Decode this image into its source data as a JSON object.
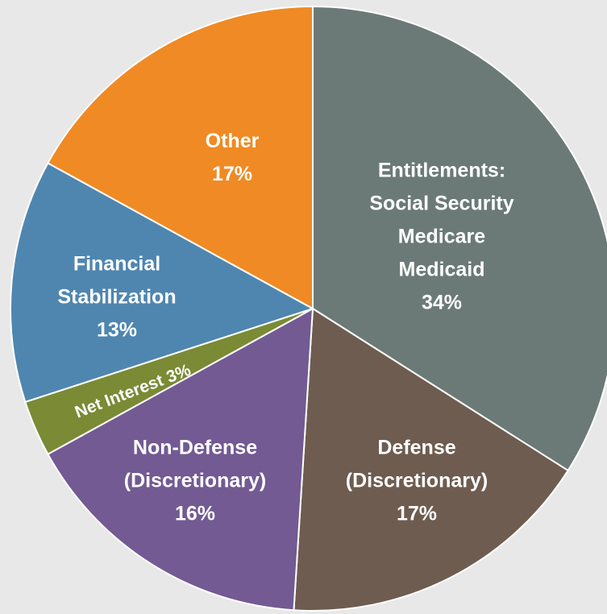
{
  "chart_data": {
    "type": "pie",
    "categories": [
      [
        "Entitlements:",
        "Social Security",
        "Medicare",
        "Medicaid"
      ],
      [
        "Defense",
        "(Discretionary)"
      ],
      [
        "Non-Defense",
        "(Discretionary)"
      ],
      [
        "Net Interest"
      ],
      [
        "Financial",
        "Stabilization"
      ],
      [
        "Other"
      ]
    ],
    "values": [
      34,
      17,
      16,
      3,
      13,
      17
    ],
    "value_labels": [
      "34%",
      "17%",
      "16%",
      "3%",
      "13%",
      "17%"
    ],
    "colors": [
      "#6b7a76",
      "#6e5c50",
      "#735a93",
      "#7a8a35",
      "#4f86b0",
      "#f08a24"
    ]
  }
}
